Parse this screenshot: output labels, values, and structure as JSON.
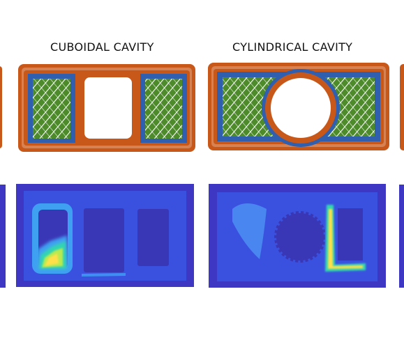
{
  "figure": {
    "labels": {
      "cuboidal": "CUBOIDAL CAVITY",
      "cylindrical": "CYLINDRICAL CAVITY"
    },
    "colors": {
      "print_outline": "#c8581a",
      "print_inner_wall": "#2f5fae",
      "print_infill": "#4c8a2a",
      "print_hatch": "#ffffff",
      "map_background": "#3d37c4",
      "map_plate": "#3a51e0",
      "map_cavity": "#3a37b6",
      "map_hot": "#ffe04a",
      "map_warm": "#33d6b0",
      "map_cool": "#3fa0f2"
    }
  }
}
